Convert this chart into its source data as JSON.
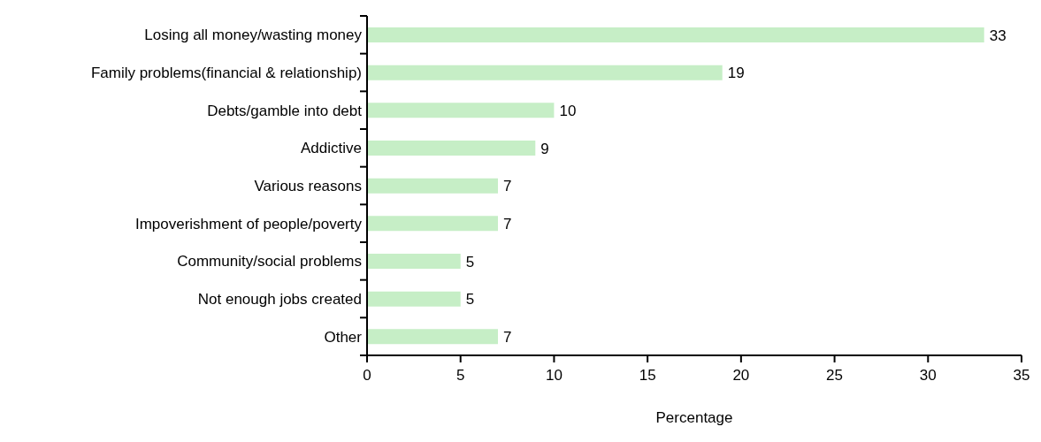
{
  "chart_data": {
    "type": "bar",
    "orientation": "horizontal",
    "categories": [
      "Losing all money/wasting money",
      "Family problems(financial & relationship)",
      "Debts/gamble into debt",
      "Addictive",
      "Various reasons",
      "Impoverishment of people/poverty",
      "Community/social problems",
      "Not enough jobs created",
      "Other"
    ],
    "values": [
      33,
      19,
      10,
      9,
      7,
      7,
      5,
      5,
      7
    ],
    "color": "#c6eec6",
    "xlabel": "Percentage",
    "xlim": [
      0,
      35
    ],
    "xticks": [
      0,
      5,
      10,
      15,
      20,
      25,
      30,
      35
    ],
    "data_labels": true
  }
}
